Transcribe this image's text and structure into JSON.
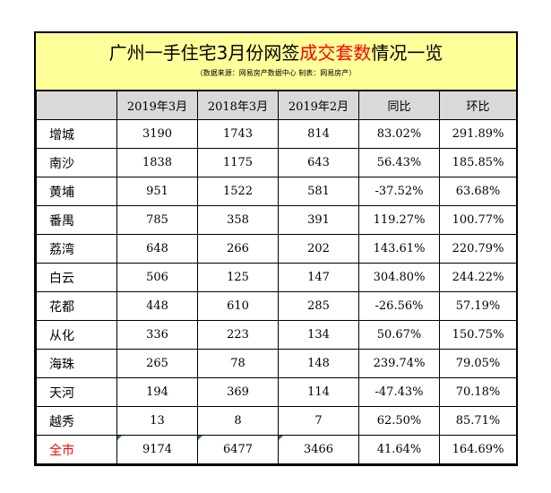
{
  "title": {
    "part1": "广州一手住宅3月份网签",
    "highlight": "成交套数",
    "part2": "情况一览",
    "subtitle": "（数据来源：网易房产数据中心 制表：网易房产）"
  },
  "colors": {
    "title_band": "#ffff99",
    "header_bg": "#d9d9d9",
    "highlight": "#ff0000",
    "total_label": "#ff0000"
  },
  "headers": [
    "",
    "2019年3月",
    "2018年3月",
    "2019年2月",
    "同比",
    "环比"
  ],
  "rows": [
    [
      "增城",
      "3190",
      "1743",
      "814",
      "83.02%",
      "291.89%"
    ],
    [
      "南沙",
      "1838",
      "1175",
      "643",
      "56.43%",
      "185.85%"
    ],
    [
      "黄埔",
      "951",
      "1522",
      "581",
      "-37.52%",
      "63.68%"
    ],
    [
      "番禺",
      "785",
      "358",
      "391",
      "119.27%",
      "100.77%"
    ],
    [
      "荔湾",
      "648",
      "266",
      "202",
      "143.61%",
      "220.79%"
    ],
    [
      "白云",
      "506",
      "125",
      "147",
      "304.80%",
      "244.22%"
    ],
    [
      "花都",
      "448",
      "610",
      "285",
      "-26.56%",
      "57.19%"
    ],
    [
      "从化",
      "336",
      "223",
      "134",
      "50.67%",
      "150.75%"
    ],
    [
      "海珠",
      "265",
      "78",
      "148",
      "239.74%",
      "79.05%"
    ],
    [
      "天河",
      "194",
      "369",
      "114",
      "-47.43%",
      "70.18%"
    ],
    [
      "越秀",
      "13",
      "8",
      "7",
      "62.50%",
      "85.71%"
    ]
  ],
  "total": [
    "全市",
    "9174",
    "6477",
    "3466",
    "41.64%",
    "164.69%"
  ]
}
